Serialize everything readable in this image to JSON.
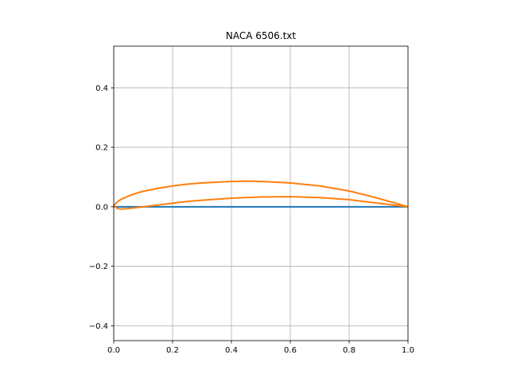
{
  "chart_data": {
    "type": "line",
    "title": "NACA 6506.txt",
    "xlabel": "",
    "ylabel": "",
    "xlim": [
      0.0,
      1.0
    ],
    "ylim": [
      -0.45,
      0.54
    ],
    "grid": true,
    "legend": "none",
    "x_ticks": [
      {
        "value": 0.0,
        "label": "0.0"
      },
      {
        "value": 0.2,
        "label": "0.2"
      },
      {
        "value": 0.4,
        "label": "0.4"
      },
      {
        "value": 0.6,
        "label": "0.6"
      },
      {
        "value": 0.8,
        "label": "0.8"
      },
      {
        "value": 1.0,
        "label": "1.0"
      }
    ],
    "y_ticks": [
      {
        "value": -0.4,
        "label": "−0.4"
      },
      {
        "value": -0.2,
        "label": "−0.2"
      },
      {
        "value": 0.0,
        "label": "0.0"
      },
      {
        "value": 0.2,
        "label": "0.2"
      },
      {
        "value": 0.4,
        "label": "0.4"
      }
    ],
    "series": [
      {
        "color": "#1f77b4",
        "x": [
          0.0,
          1.0
        ],
        "y": [
          0.0,
          0.0
        ]
      },
      {
        "color": "#ff7f0e",
        "x": [
          1.0,
          0.95,
          0.9,
          0.85,
          0.8,
          0.7,
          0.6,
          0.5,
          0.45,
          0.4,
          0.3,
          0.25,
          0.2,
          0.15,
          0.1,
          0.075,
          0.05,
          0.025,
          0.0125,
          0.0,
          0.0125,
          0.025,
          0.05,
          0.075,
          0.1,
          0.15,
          0.2,
          0.25,
          0.3,
          0.4,
          0.5,
          0.6,
          0.7,
          0.8,
          0.85,
          0.9,
          0.95,
          1.0
        ],
        "y": [
          0.0,
          0.014,
          0.028,
          0.041,
          0.053,
          0.07,
          0.08,
          0.085,
          0.086,
          0.085,
          0.08,
          0.076,
          0.07,
          0.062,
          0.052,
          0.045,
          0.036,
          0.025,
          0.017,
          0.004,
          -0.006,
          -0.008,
          -0.006,
          -0.003,
          0.0,
          0.006,
          0.012,
          0.018,
          0.022,
          0.029,
          0.033,
          0.034,
          0.031,
          0.024,
          0.018,
          0.012,
          0.006,
          0.0
        ]
      }
    ]
  }
}
